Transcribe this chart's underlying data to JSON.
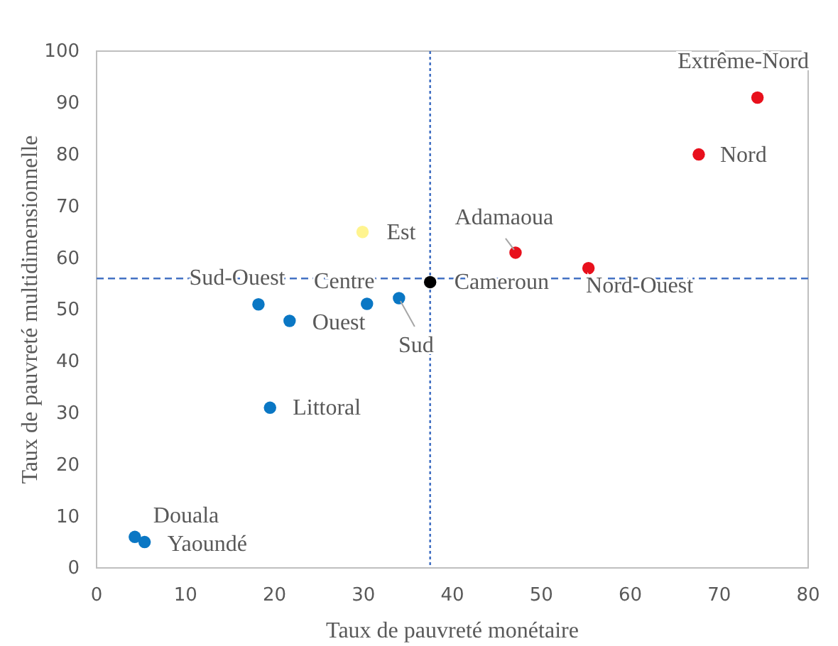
{
  "chart_data": {
    "type": "scatter",
    "xlabel": "Taux de pauvreté monétaire",
    "ylabel": "Taux de pauvreté multidimensionnelle",
    "x": [
      74.3,
      67.7,
      47.1,
      55.3,
      29.9,
      37.5,
      34,
      30.4,
      18.2,
      21.7,
      19.5,
      4.3,
      5.4
    ],
    "values": [
      91,
      80,
      61,
      58,
      65,
      55.3,
      52.2,
      51.1,
      51,
      47.8,
      31,
      6,
      5
    ],
    "colors": [
      "#e8101c",
      "#e8101c",
      "#e8101c",
      "#e8101c",
      "#fff48f",
      "#000000",
      "#0a77c4",
      "#0a77c4",
      "#0a77c4",
      "#0a77c4",
      "#0a77c4",
      "#0a77c4",
      "#0a77c4"
    ],
    "xlim": [
      0,
      80
    ],
    "xticks": [
      0,
      10,
      20,
      30,
      40,
      50,
      60,
      70,
      80
    ],
    "ylim": [
      0,
      100
    ],
    "yticks": [
      0,
      10,
      20,
      30,
      40,
      50,
      60,
      70,
      80,
      90,
      100
    ],
    "marker": "circle",
    "grid": false,
    "ref_lines": [
      {
        "axis": "y",
        "value": 56,
        "color": "#4472c4",
        "line_style": "dashed"
      },
      {
        "axis": "x",
        "value": 37.5,
        "color": "#4472c4",
        "line_style": "dotted"
      }
    ],
    "annotations": [
      {
        "text": "Extrême-Nord",
        "x": 74.3,
        "y": 91
      },
      {
        "text": "Nord",
        "x": 67.7,
        "y": 80
      },
      {
        "text": "Adamaoua",
        "x": 47.1,
        "y": 61
      },
      {
        "text": "Nord-Ouest",
        "x": 55.3,
        "y": 58
      },
      {
        "text": "Est",
        "x": 29.9,
        "y": 65
      },
      {
        "text": "Cameroun",
        "x": 37.5,
        "y": 55.3
      },
      {
        "text": "Sud",
        "x": 34,
        "y": 52.2
      },
      {
        "text": "Centre",
        "x": 30.4,
        "y": 51.1
      },
      {
        "text": "Sud-Ouest",
        "x": 18.2,
        "y": 51
      },
      {
        "text": "Ouest",
        "x": 21.7,
        "y": 47.8
      },
      {
        "text": "Littoral",
        "x": 19.5,
        "y": 31
      },
      {
        "text": "Douala",
        "x": 4.3,
        "y": 6
      },
      {
        "text": "Yaoundé",
        "x": 5.4,
        "y": 5
      }
    ]
  }
}
